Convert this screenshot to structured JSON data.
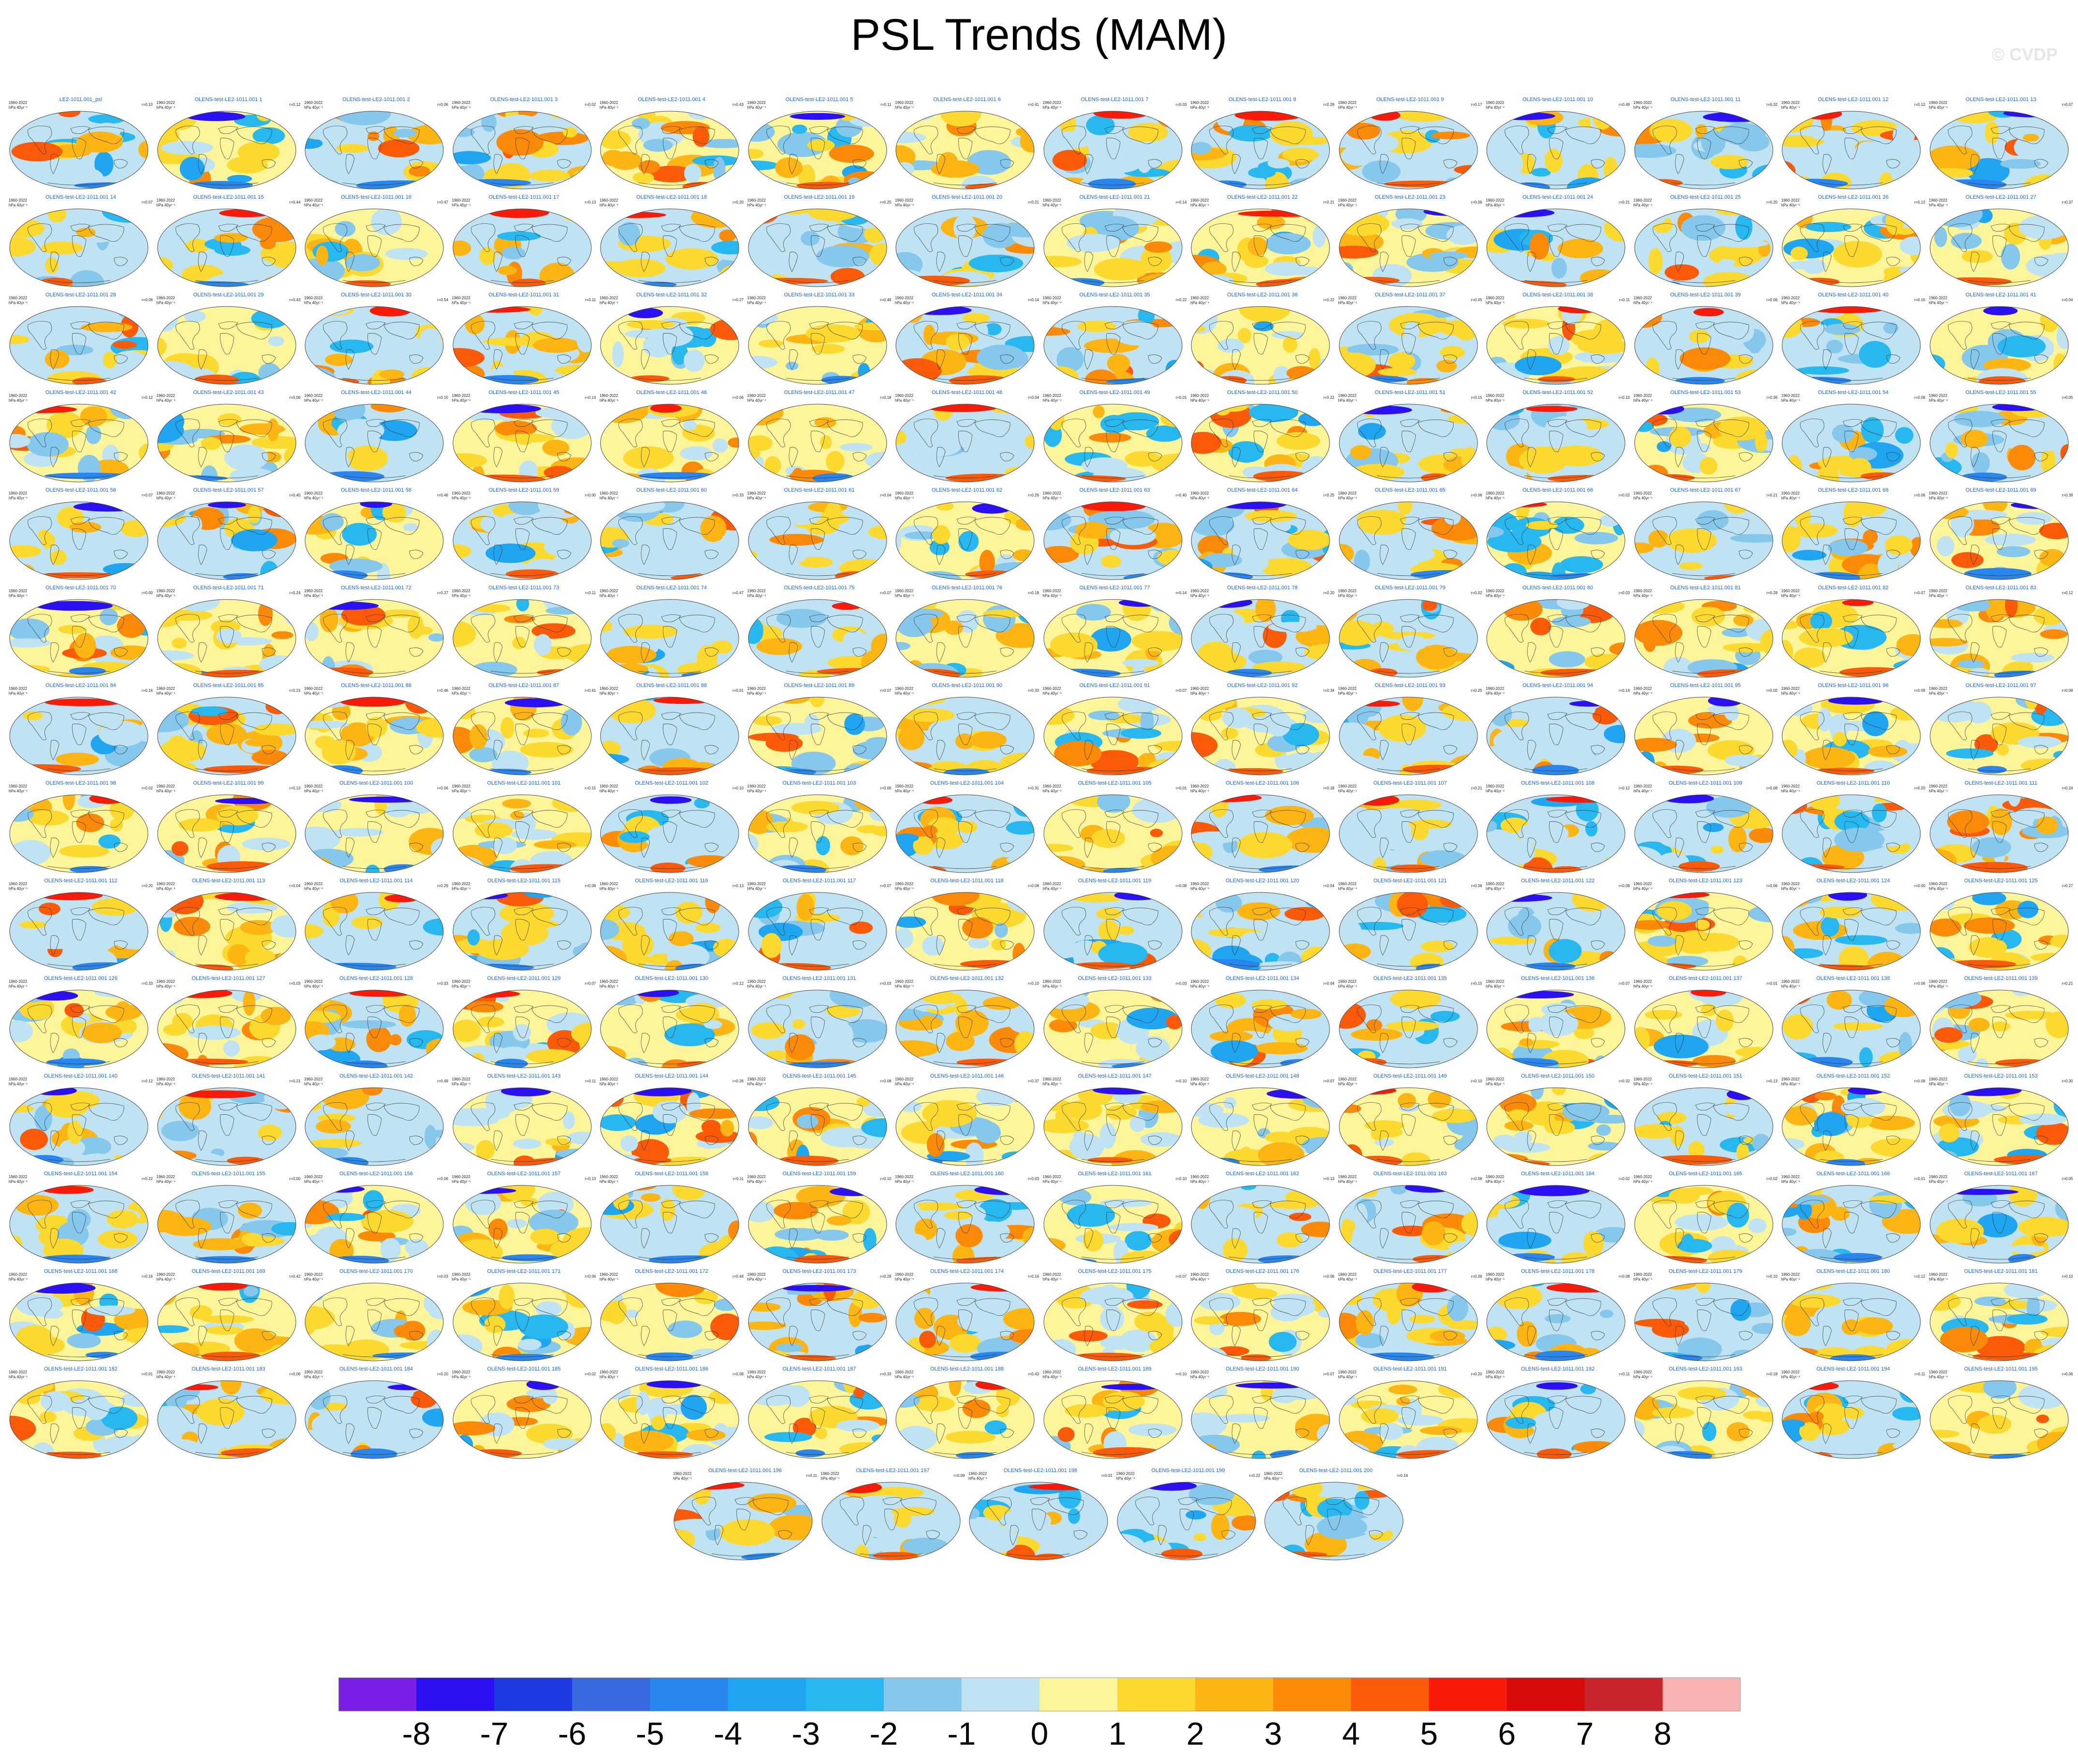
{
  "title": "PSL Trends (MAM)",
  "watermark": "© CVDP",
  "panel_period": "1960-2022",
  "panel_units": "hPa 40yr⁻¹",
  "panels": [
    {
      "title": "LE2-1011.001_psl",
      "r": "r=0.10"
    },
    {
      "title": "OLENS-test-LE2-1011.001 1",
      "r": "r=0.12"
    },
    {
      "title": "OLENS-test-LE2-1011.001 2",
      "r": "r=0.06"
    },
    {
      "title": "OLENS-test-LE2-1011.001 3",
      "r": "r=0.02"
    },
    {
      "title": "OLENS-test-LE2-1011.001 4",
      "r": "r=0.43"
    },
    {
      "title": "OLENS-test-LE2-1011.001 5",
      "r": "r=0.11"
    },
    {
      "title": "OLENS-test-LE2-1011.001 6",
      "r": "r=0.41"
    },
    {
      "title": "OLENS-test-LE2-1011.001 7",
      "r": "r=0.03"
    },
    {
      "title": "OLENS-test-LE2-1011.001 8",
      "r": "r=0.28"
    },
    {
      "title": "OLENS-test-LE2-1011.001 9",
      "r": "r=0.17"
    },
    {
      "title": "OLENS-test-LE2-1011.001 10",
      "r": "r=0.49"
    },
    {
      "title": "OLENS-test-LE2-1011.001 11",
      "r": "r=0.32"
    },
    {
      "title": "OLENS-test-LE2-1011.001 12",
      "r": "r=0.12"
    },
    {
      "title": "OLENS-test-LE2-1011.001 13",
      "r": "r=0.07"
    },
    {
      "title": "OLENS-test-LE2-1011.001 14",
      "r": "r=0.07"
    },
    {
      "title": "OLENS-test-LE2-1011.001 15",
      "r": "r=0.44"
    },
    {
      "title": "OLENS-test-LE2-1011.001 16",
      "r": "r=0.47"
    },
    {
      "title": "OLENS-test-LE2-1011.001 17",
      "r": "r=0.13"
    },
    {
      "title": "OLENS-test-LE2-1011.001 18",
      "r": "r=0.20"
    },
    {
      "title": "OLENS-test-LE2-1011.001 19",
      "r": "r=0.25"
    },
    {
      "title": "OLENS-test-LE2-1011.001 20",
      "r": "r=0.21"
    },
    {
      "title": "OLENS-test-LE2-1011.001 21",
      "r": "r=0.14"
    },
    {
      "title": "OLENS-test-LE2-1011.001 22",
      "r": "r=0.21"
    },
    {
      "title": "OLENS-test-LE2-1011.001 23",
      "r": "r=0.06"
    },
    {
      "title": "OLENS-test-LE2-1011.001 24",
      "r": "r=0.21"
    },
    {
      "title": "OLENS-test-LE2-1011.001 25",
      "r": "r=0.20"
    },
    {
      "title": "OLENS-test-LE2-1011.001 26",
      "r": "r=0.12"
    },
    {
      "title": "OLENS-test-LE2-1011.001 27",
      "r": "r=0.37"
    },
    {
      "title": "OLENS-test-LE2-1011.001 28",
      "r": "r=0.06"
    },
    {
      "title": "OLENS-test-LE2-1011.001 29",
      "r": "r=0.43"
    },
    {
      "title": "OLENS-test-LE2-1011.001 30",
      "r": "r=0.54"
    },
    {
      "title": "OLENS-test-LE2-1011.001 31",
      "r": "r=0.11"
    },
    {
      "title": "OLENS-test-LE2-1011.001 32",
      "r": "r=0.27"
    },
    {
      "title": "OLENS-test-LE2-1011.001 33",
      "r": "r=0.46"
    },
    {
      "title": "OLENS-test-LE2-1011.001 34",
      "r": "r=0.14"
    },
    {
      "title": "OLENS-test-LE2-1011.001 35",
      "r": "r=0.22"
    },
    {
      "title": "OLENS-test-LE2-1011.001 36",
      "r": "r=0.22"
    },
    {
      "title": "OLENS-test-LE2-1011.001 37",
      "r": "r=0.05"
    },
    {
      "title": "OLENS-test-LE2-1011.001 38",
      "r": "r=0.11"
    },
    {
      "title": "OLENS-test-LE2-1011.001 39",
      "r": "r=0.06"
    },
    {
      "title": "OLENS-test-LE2-1011.001 40",
      "r": "r=0.16"
    },
    {
      "title": "OLENS-test-LE2-1011.001 41",
      "r": "r=0.04"
    },
    {
      "title": "OLENS-test-LE2-1011.001 42",
      "r": "r=0.12"
    },
    {
      "title": "OLENS-test-LE2-1011.001 43",
      "r": "r=0.06"
    },
    {
      "title": "OLENS-test-LE2-1011.001 44",
      "r": "r=0.15"
    },
    {
      "title": "OLENS-test-LE2-1011.001 45",
      "r": "r=0.14"
    },
    {
      "title": "OLENS-test-LE2-1011.001 46",
      "r": "r=0.06"
    },
    {
      "title": "OLENS-test-LE2-1011.001 47",
      "r": "r=0.18"
    },
    {
      "title": "OLENS-test-LE2-1011.001 48",
      "r": "r=0.04"
    },
    {
      "title": "OLENS-test-LE2-1011.001 49",
      "r": "r=0.01"
    },
    {
      "title": "OLENS-test-LE2-1011.001 50",
      "r": "r=0.22"
    },
    {
      "title": "OLENS-test-LE2-1011.001 51",
      "r": "r=0.15"
    },
    {
      "title": "OLENS-test-LE2-1011.001 52",
      "r": "r=0.10"
    },
    {
      "title": "OLENS-test-LE2-1011.001 53",
      "r": "r=0.36"
    },
    {
      "title": "OLENS-test-LE2-1011.001 54",
      "r": "r=0.08"
    },
    {
      "title": "OLENS-test-LE2-1011.001 55",
      "r": "r=0.05"
    },
    {
      "title": "OLENS-test-LE2-1011.001 56",
      "r": "r=0.07"
    },
    {
      "title": "OLENS-test-LE2-1011.001 57",
      "r": "r=0.40"
    },
    {
      "title": "OLENS-test-LE2-1011.001 58",
      "r": "r=0.46"
    },
    {
      "title": "OLENS-test-LE2-1011.001 59",
      "r": "r=0.00"
    },
    {
      "title": "OLENS-test-LE2-1011.001 60",
      "r": "r=0.33"
    },
    {
      "title": "OLENS-test-LE2-1011.001 61",
      "r": "r=0.04"
    },
    {
      "title": "OLENS-test-LE2-1011.001 62",
      "r": "r=0.26"
    },
    {
      "title": "OLENS-test-LE2-1011.001 63",
      "r": "r=0.40"
    },
    {
      "title": "OLENS-test-LE2-1011.001 64",
      "r": "r=0.25"
    },
    {
      "title": "OLENS-test-LE2-1011.001 65",
      "r": "r=0.06"
    },
    {
      "title": "OLENS-test-LE2-1011.001 66",
      "r": "r=0.02"
    },
    {
      "title": "OLENS-test-LE2-1011.001 67",
      "r": "r=0.21"
    },
    {
      "title": "OLENS-test-LE2-1011.001 68",
      "r": "r=0.06"
    },
    {
      "title": "OLENS-test-LE2-1011.001 69",
      "r": "r=0.39"
    },
    {
      "title": "OLENS-test-LE2-1011.001 70",
      "r": "r=0.00"
    },
    {
      "title": "OLENS-test-LE2-1011.001 71",
      "r": "r=0.24"
    },
    {
      "title": "OLENS-test-LE2-1011.001 72",
      "r": "r=0.27"
    },
    {
      "title": "OLENS-test-LE2-1011.001 73",
      "r": "r=0.11"
    },
    {
      "title": "OLENS-test-LE2-1011.001 74",
      "r": "r=0.47"
    },
    {
      "title": "OLENS-test-LE2-1011.001 75",
      "r": "r=0.07"
    },
    {
      "title": "OLENS-test-LE2-1011.001 76",
      "r": "r=0.18"
    },
    {
      "title": "OLENS-test-LE2-1011.001 77",
      "r": "r=0.14"
    },
    {
      "title": "OLENS-test-LE2-1011.001 78",
      "r": "r=0.20"
    },
    {
      "title": "OLENS-test-LE2-1011.001 79",
      "r": "r=0.02"
    },
    {
      "title": "OLENS-test-LE2-1011.001 80",
      "r": "r=0.03"
    },
    {
      "title": "OLENS-test-LE2-1011.001 81",
      "r": "r=0.28"
    },
    {
      "title": "OLENS-test-LE2-1011.001 82",
      "r": "r=0.07"
    },
    {
      "title": "OLENS-test-LE2-1011.001 83",
      "r": "r=0.12"
    },
    {
      "title": "OLENS-test-LE2-1011.001 84",
      "r": "r=0.16"
    },
    {
      "title": "OLENS-test-LE2-1011.001 85",
      "r": "r=0.21"
    },
    {
      "title": "OLENS-test-LE2-1011.001 86",
      "r": "r=0.46"
    },
    {
      "title": "OLENS-test-LE2-1011.001 87",
      "r": "r=0.41"
    },
    {
      "title": "OLENS-test-LE2-1011.001 88",
      "r": "r=0.01"
    },
    {
      "title": "OLENS-test-LE2-1011.001 89",
      "r": "r=0.07"
    },
    {
      "title": "OLENS-test-LE2-1011.001 90",
      "r": "r=0.33"
    },
    {
      "title": "OLENS-test-LE2-1011.001 91",
      "r": "r=0.07"
    },
    {
      "title": "OLENS-test-LE2-1011.001 92",
      "r": "r=0.34"
    },
    {
      "title": "OLENS-test-LE2-1011.001 93",
      "r": "r=0.25"
    },
    {
      "title": "OLENS-test-LE2-1011.001 94",
      "r": "r=0.14"
    },
    {
      "title": "OLENS-test-LE2-1011.001 95",
      "r": "r=0.02"
    },
    {
      "title": "OLENS-test-LE2-1011.001 96",
      "r": "r=0.09"
    },
    {
      "title": "OLENS-test-LE2-1011.001 97",
      "r": "r=0.08"
    },
    {
      "title": "OLENS-test-LE2-1011.001 98",
      "r": "r=0.02"
    },
    {
      "title": "OLENS-test-LE2-1011.001 99",
      "r": "r=0.13"
    },
    {
      "title": "OLENS-test-LE2-1011.001 100",
      "r": "r=0.06"
    },
    {
      "title": "OLENS-test-LE2-1011.001 101",
      "r": "r=0.15"
    },
    {
      "title": "OLENS-test-LE2-1011.001 102",
      "r": "r=0.10"
    },
    {
      "title": "OLENS-test-LE2-1011.001 103",
      "r": "r=0.06"
    },
    {
      "title": "OLENS-test-LE2-1011.001 104",
      "r": "r=0.31"
    },
    {
      "title": "OLENS-test-LE2-1011.001 105",
      "r": "r=0.01"
    },
    {
      "title": "OLENS-test-LE2-1011.001 106",
      "r": "r=0.18"
    },
    {
      "title": "OLENS-test-LE2-1011.001 107",
      "r": "r=0.21"
    },
    {
      "title": "OLENS-test-LE2-1011.001 108",
      "r": "r=0.12"
    },
    {
      "title": "OLENS-test-LE2-1011.001 109",
      "r": "r=0.08"
    },
    {
      "title": "OLENS-test-LE2-1011.001 110",
      "r": "r=0.20"
    },
    {
      "title": "OLENS-test-LE2-1011.001 111",
      "r": "r=0.24"
    },
    {
      "title": "OLENS-test-LE2-1011.001 112",
      "r": "r=0.20"
    },
    {
      "title": "OLENS-test-LE2-1011.001 113",
      "r": "r=0.04"
    },
    {
      "title": "OLENS-test-LE2-1011.001 114",
      "r": "r=0.29"
    },
    {
      "title": "OLENS-test-LE2-1011.001 115",
      "r": "r=0.08"
    },
    {
      "title": "OLENS-test-LE2-1011.001 116",
      "r": "r=0.13"
    },
    {
      "title": "OLENS-test-LE2-1011.001 117",
      "r": "r=0.07"
    },
    {
      "title": "OLENS-test-LE2-1011.001 118",
      "r": "r=0.08"
    },
    {
      "title": "OLENS-test-LE2-1011.001 119",
      "r": "r=0.08"
    },
    {
      "title": "OLENS-test-LE2-1011.001 120",
      "r": "r=0.54"
    },
    {
      "title": "OLENS-test-LE2-1011.001 121",
      "r": "r=0.06"
    },
    {
      "title": "OLENS-test-LE2-1011.001 122",
      "r": "r=0.08"
    },
    {
      "title": "OLENS-test-LE2-1011.001 123",
      "r": "r=0.06"
    },
    {
      "title": "OLENS-test-LE2-1011.001 124",
      "r": "r=0.00"
    },
    {
      "title": "OLENS-test-LE2-1011.001 125",
      "r": "r=0.27"
    },
    {
      "title": "OLENS-test-LE2-1011.001 126",
      "r": "r=0.33"
    },
    {
      "title": "OLENS-test-LE2-1011.001 127",
      "r": "r=0.03"
    },
    {
      "title": "OLENS-test-LE2-1011.001 128",
      "r": "r=0.03"
    },
    {
      "title": "OLENS-test-LE2-1011.001 129",
      "r": "r=0.07"
    },
    {
      "title": "OLENS-test-LE2-1011.001 130",
      "r": "r=0.12"
    },
    {
      "title": "OLENS-test-LE2-1011.001 131",
      "r": "r=0.03"
    },
    {
      "title": "OLENS-test-LE2-1011.001 132",
      "r": "r=0.10"
    },
    {
      "title": "OLENS-test-LE2-1011.001 133",
      "r": "r=0.03"
    },
    {
      "title": "OLENS-test-LE2-1011.001 134",
      "r": "r=0.04"
    },
    {
      "title": "OLENS-test-LE2-1011.001 135",
      "r": "r=0.15"
    },
    {
      "title": "OLENS-test-LE2-1011.001 136",
      "r": "r=0.07"
    },
    {
      "title": "OLENS-test-LE2-1011.001 137",
      "r": "r=0.01"
    },
    {
      "title": "OLENS-test-LE2-1011.001 138",
      "r": "r=0.06"
    },
    {
      "title": "OLENS-test-LE2-1011.001 139",
      "r": "r=0.21"
    },
    {
      "title": "OLENS-test-LE2-1011.001 140",
      "r": "r=0.12"
    },
    {
      "title": "OLENS-test-LE2-1011.001 141",
      "r": "r=0.21"
    },
    {
      "title": "OLENS-test-LE2-1011.001 142",
      "r": "r=0.49"
    },
    {
      "title": "OLENS-test-LE2-1011.001 143",
      "r": "r=0.11"
    },
    {
      "title": "OLENS-test-LE2-1011.001 144",
      "r": "r=0.26"
    },
    {
      "title": "OLENS-test-LE2-1011.001 145",
      "r": "r=0.08"
    },
    {
      "title": "OLENS-test-LE2-1011.001 146",
      "r": "r=0.37"
    },
    {
      "title": "OLENS-test-LE2-1011.001 147",
      "r": "r=0.10"
    },
    {
      "title": "OLENS-test-LE2-1011.001 148",
      "r": "r=0.07"
    },
    {
      "title": "OLENS-test-LE2-1011.001 149",
      "r": "r=0.10"
    },
    {
      "title": "OLENS-test-LE2-1011.001 150",
      "r": "r=0.32"
    },
    {
      "title": "OLENS-test-LE2-1011.001 151",
      "r": "r=0.13"
    },
    {
      "title": "OLENS-test-LE2-1011.001 152",
      "r": "r=0.08"
    },
    {
      "title": "OLENS-test-LE2-1011.001 153",
      "r": "r=0.30"
    },
    {
      "title": "OLENS-test-LE2-1011.001 154",
      "r": "r=0.22"
    },
    {
      "title": "OLENS-test-LE2-1011.001 155",
      "r": "r=0.00"
    },
    {
      "title": "OLENS-test-LE2-1011.001 156",
      "r": "r=0.06"
    },
    {
      "title": "OLENS-test-LE2-1011.001 157",
      "r": "r=0.13"
    },
    {
      "title": "OLENS-test-LE2-1011.001 158",
      "r": "r=0.11"
    },
    {
      "title": "OLENS-test-LE2-1011.001 159",
      "r": "r=0.10"
    },
    {
      "title": "OLENS-test-LE2-1011.001 160",
      "r": "r=0.03"
    },
    {
      "title": "OLENS-test-LE2-1011.001 161",
      "r": "r=0.10"
    },
    {
      "title": "OLENS-test-LE2-1011.001 162",
      "r": "r=0.13"
    },
    {
      "title": "OLENS-test-LE2-1011.001 163",
      "r": "r=0.08"
    },
    {
      "title": "OLENS-test-LE2-1011.001 164",
      "r": "r=0.02"
    },
    {
      "title": "OLENS-test-LE2-1011.001 165",
      "r": "r=0.02"
    },
    {
      "title": "OLENS-test-LE2-1011.001 166",
      "r": "r=0.01"
    },
    {
      "title": "OLENS-test-LE2-1011.001 167",
      "r": "r=0.05"
    },
    {
      "title": "OLENS-test-LE2-1011.001 168",
      "r": "r=0.16"
    },
    {
      "title": "OLENS-test-LE2-1011.001 169",
      "r": "r=0.42"
    },
    {
      "title": "OLENS-test-LE2-1011.001 170",
      "r": "r=0.03"
    },
    {
      "title": "OLENS-test-LE2-1011.001 171",
      "r": "r=0.06"
    },
    {
      "title": "OLENS-test-LE2-1011.001 172",
      "r": "r=0.44"
    },
    {
      "title": "OLENS-test-LE2-1011.001 173",
      "r": "r=0.28"
    },
    {
      "title": "OLENS-test-LE2-1011.001 174",
      "r": "r=0.16"
    },
    {
      "title": "OLENS-test-LE2-1011.001 175",
      "r": "r=0.07"
    },
    {
      "title": "OLENS-test-LE2-1011.001 176",
      "r": "r=0.06"
    },
    {
      "title": "OLENS-test-LE2-1011.001 177",
      "r": "r=0.06"
    },
    {
      "title": "OLENS-test-LE2-1011.001 178",
      "r": "r=0.08"
    },
    {
      "title": "OLENS-test-LE2-1011.001 179",
      "r": "r=0.10"
    },
    {
      "title": "OLENS-test-LE2-1011.001 180",
      "r": "r=0.12"
    },
    {
      "title": "OLENS-test-LE2-1011.001 181",
      "r": "r=0.10"
    },
    {
      "title": "OLENS-test-LE2-1011.001 182",
      "r": "r=0.01"
    },
    {
      "title": "OLENS-test-LE2-1011.001 183",
      "r": "r=0.06"
    },
    {
      "title": "OLENS-test-LE2-1011.001 184",
      "r": "r=0.20"
    },
    {
      "title": "OLENS-test-LE2-1011.001 185",
      "r": "r=0.02"
    },
    {
      "title": "OLENS-test-LE2-1011.001 186",
      "r": "r=0.08"
    },
    {
      "title": "OLENS-test-LE2-1011.001 187",
      "r": "r=0.33"
    },
    {
      "title": "OLENS-test-LE2-1011.001 188",
      "r": "r=0.43"
    },
    {
      "title": "OLENS-test-LE2-1011.001 189",
      "r": "r=0.10"
    },
    {
      "title": "OLENS-test-LE2-1011.001 190",
      "r": "r=0.07"
    },
    {
      "title": "OLENS-test-LE2-1011.001 191",
      "r": "r=0.20"
    },
    {
      "title": "OLENS-test-LE2-1011.001 192",
      "r": "r=0.11"
    },
    {
      "title": "OLENS-test-LE2-1011.001 193",
      "r": "r=0.18"
    },
    {
      "title": "OLENS-test-LE2-1011.001 194",
      "r": "r=0.11"
    },
    {
      "title": "OLENS-test-LE2-1011.001 195",
      "r": "r=0.06"
    },
    {
      "title": "OLENS-test-LE2-1011.001 196",
      "r": "r=0.11"
    },
    {
      "title": "OLENS-test-LE2-1011.001 197",
      "r": "r=0.09"
    },
    {
      "title": "OLENS-test-LE2-1011.001 198",
      "r": "r=0.01"
    },
    {
      "title": "OLENS-test-LE2-1011.001 199",
      "r": "r=0.22"
    },
    {
      "title": "OLENS-test-LE2-1011.001 200",
      "r": "r=0.14"
    }
  ],
  "colorbar": {
    "labels": [
      "-8",
      "-7",
      "-6",
      "-5",
      "-4",
      "-3",
      "-2",
      "-1",
      "0",
      "1",
      "2",
      "3",
      "4",
      "5",
      "6",
      "7",
      "8"
    ],
    "colors": [
      "#7a1fe6",
      "#2a10f2",
      "#1f3ae3",
      "#3a6ae0",
      "#2a86ef",
      "#20a6f0",
      "#28b8f0",
      "#86c8ec",
      "#bfe3f2",
      "#fcf59a",
      "#fcd92e",
      "#fcb512",
      "#fa8a07",
      "#fb5a08",
      "#f91b09",
      "#d90a0a",
      "#c8262c",
      "#f8b2b4"
    ]
  },
  "chart_data": {
    "type": "heatmap",
    "title": "PSL Trends (MAM)",
    "period": "1960-2022",
    "units": "hPa 40yr⁻¹",
    "n_panels": 201,
    "color_levels": [
      -8,
      -7,
      -6,
      -5,
      -4,
      -3,
      -2,
      -1,
      0,
      1,
      2,
      3,
      4,
      5,
      6,
      7,
      8
    ]
  }
}
